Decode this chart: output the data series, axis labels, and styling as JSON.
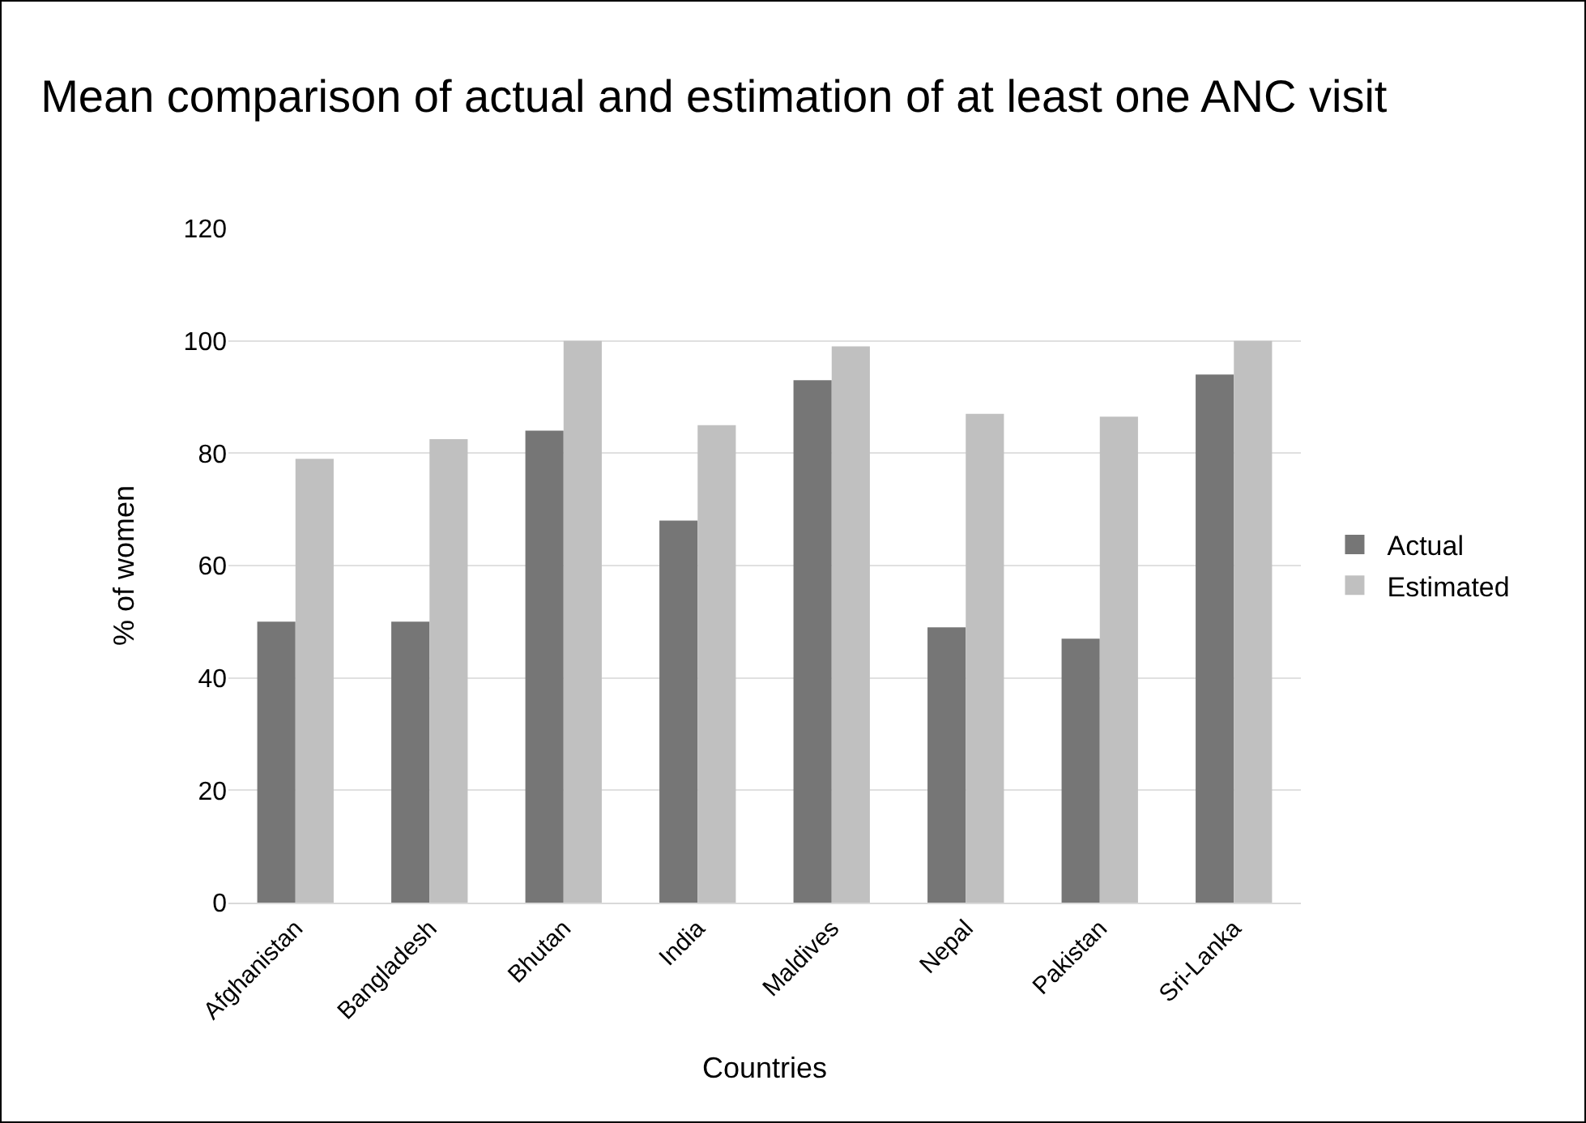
{
  "chart_data": {
    "type": "bar",
    "title": "Mean comparison of actual and estimation of at least one ANC visit",
    "xlabel": "Countries",
    "ylabel": "% of women",
    "categories": [
      "Afghanistan",
      "Bangladesh",
      "Bhutan",
      "India",
      "Maldives",
      "Nepal",
      "Pakistan",
      "Sri-Lanka"
    ],
    "series": [
      {
        "name": "Actual",
        "color": "#767676",
        "values": [
          50,
          50,
          84,
          68,
          93,
          49,
          47,
          94
        ]
      },
      {
        "name": "Estimated",
        "color": "#c0c0c0",
        "values": [
          79,
          82.5,
          100,
          85,
          99,
          87,
          86.5,
          100
        ]
      }
    ],
    "ylim": [
      0,
      120
    ],
    "yticks": [
      0,
      20,
      40,
      60,
      80,
      100,
      120
    ],
    "grid": "y",
    "legend": "right"
  }
}
